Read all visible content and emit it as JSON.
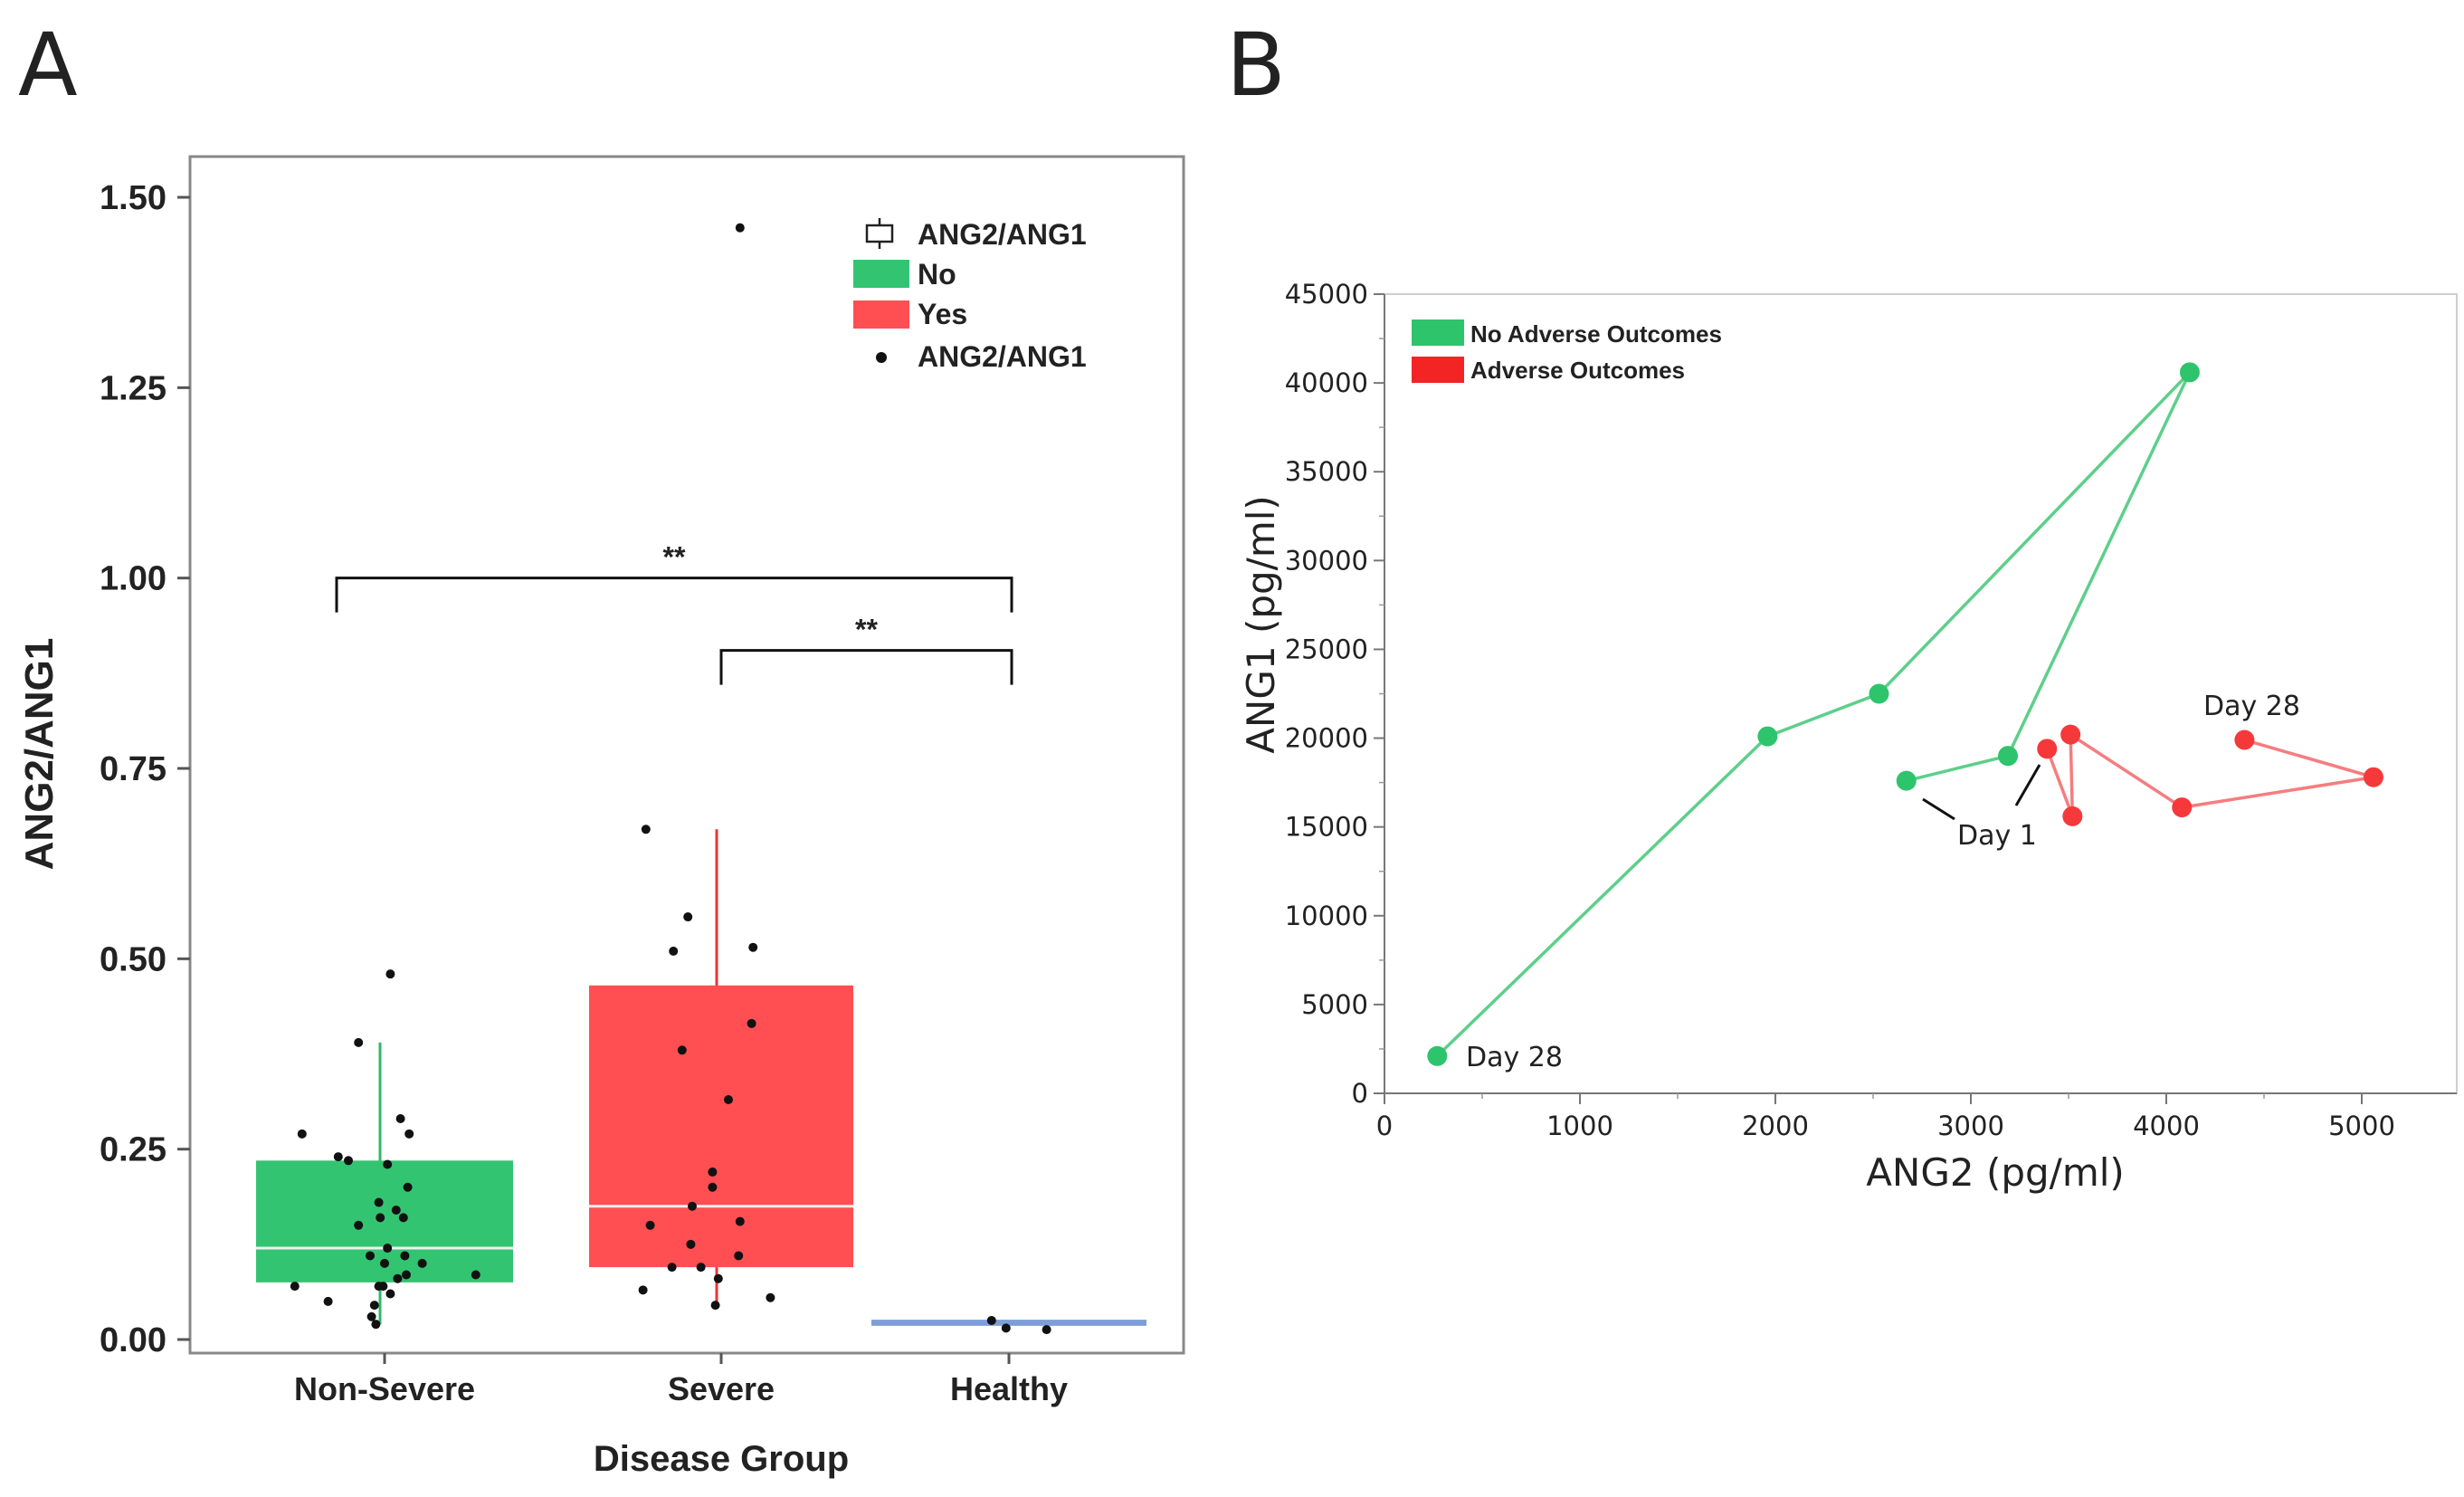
{
  "panels": {
    "a": "A",
    "b": "B"
  },
  "chart_data": [
    {
      "type": "box",
      "panel": "A",
      "title": "",
      "xlabel": "Disease Group",
      "ylabel": "ANG2/ANG1",
      "ylim": [
        0,
        1.5
      ],
      "yticks": [
        0,
        0.25,
        0.5,
        0.75,
        1.0,
        1.25,
        1.5
      ],
      "ytick_labels": [
        "0.00",
        "0.25",
        "0.50",
        "0.75",
        "1.00",
        "1.25",
        "1.50"
      ],
      "categories": [
        "Non-Severe",
        "Severe",
        "Healthy"
      ],
      "legend": {
        "position": "top-right",
        "entries": [
          "ANG2/ANG1",
          "No",
          "Yes",
          "ANG2/ANG1"
        ]
      },
      "colors": {
        "No": "#33c472",
        "Yes": "#ff4f52",
        "Healthy": "#7d9ed8",
        "whisker_no": "#2fb868",
        "whisker_yes": "#ee3333",
        "median": "#f0f0f0"
      },
      "boxes": [
        {
          "category": "Non-Severe",
          "group": "No",
          "q1": 0.075,
          "median": 0.12,
          "q3": 0.235,
          "whisker_low": 0.02,
          "whisker_high": 0.39
        },
        {
          "category": "Severe",
          "group": "Yes",
          "q1": 0.095,
          "median": 0.175,
          "q3": 0.465,
          "whisker_low": 0.04,
          "whisker_high": 0.67
        },
        {
          "category": "Healthy",
          "group": "",
          "q1": 0.018,
          "median": 0.02,
          "q3": 0.026,
          "whisker_low": 0.018,
          "whisker_high": 0.026
        }
      ],
      "points": [
        {
          "category": "Non-Severe",
          "values": [
            0.27,
            0.24,
            0.235,
            0.23,
            0.2,
            0.18,
            0.17,
            0.16,
            0.16,
            0.15,
            0.12,
            0.11,
            0.1,
            0.1,
            0.085,
            0.08,
            0.07,
            0.07,
            0.07,
            0.06,
            0.05,
            0.045,
            0.03,
            0.02,
            0.39,
            0.48,
            0.29,
            0.27,
            0.11,
            0.085
          ],
          "offsets": [
            -0.57,
            -0.32,
            -0.25,
            0.02,
            0.16,
            -0.04,
            0.08,
            0.13,
            -0.03,
            -0.18,
            0.02,
            0.14,
            0.26,
            0.0,
            0.15,
            0.09,
            -0.62,
            -0.04,
            -0.01,
            0.04,
            -0.39,
            -0.07,
            -0.09,
            -0.06,
            -0.18,
            0.04,
            0.11,
            0.17,
            -0.1,
            0.63
          ]
        },
        {
          "category": "Severe",
          "values": [
            0.67,
            0.555,
            0.51,
            0.515,
            0.415,
            0.38,
            0.315,
            0.22,
            0.2,
            0.175,
            0.155,
            0.15,
            0.125,
            0.11,
            0.095,
            0.095,
            0.08,
            0.065,
            0.055,
            0.045
          ],
          "offsets": [
            -0.52,
            -0.23,
            -0.33,
            0.22,
            0.21,
            -0.27,
            0.05,
            -0.06,
            -0.06,
            -0.2,
            0.13,
            -0.49,
            -0.21,
            0.12,
            -0.34,
            -0.14,
            -0.02,
            -0.54,
            0.34,
            -0.04
          ]
        },
        {
          "category": "Severe",
          "values": [
            1.46
          ],
          "offsets": [
            0.13
          ]
        },
        {
          "category": "Healthy",
          "values": [
            0.025,
            0.015,
            0.013
          ],
          "offsets": [
            -0.12,
            -0.02,
            0.26
          ]
        }
      ],
      "annotations": [
        {
          "from": "Non-Severe",
          "to": "Healthy",
          "y": 1.0,
          "label": "**"
        },
        {
          "from": "Severe",
          "to": "Healthy",
          "y": 0.905,
          "label": "**"
        }
      ]
    },
    {
      "type": "line",
      "panel": "B",
      "title": "",
      "xlabel": "ANG2 (pg/ml)",
      "ylabel": "ANG1 (pg/ml)",
      "xlim": [
        0,
        5500
      ],
      "ylim": [
        0,
        45000
      ],
      "xticks": [
        0,
        1000,
        2000,
        3000,
        4000,
        5000
      ],
      "xtick_labels": [
        "0",
        "1000",
        "2000",
        "3000",
        "4000",
        "5000"
      ],
      "yticks": [
        0,
        5000,
        10000,
        15000,
        20000,
        25000,
        30000,
        35000,
        40000,
        45000
      ],
      "ytick_labels": [
        "0",
        "5000",
        "10000",
        "15000",
        "20000",
        "25000",
        "30000",
        "35000",
        "40000",
        "45000"
      ],
      "legend": {
        "position": "top-left",
        "entries": [
          "No Adverse Outcomes",
          "Adverse Outcomes"
        ]
      },
      "series": [
        {
          "name": "No Adverse Outcomes",
          "color": "#2ec46c",
          "line_color": "#5dcf8a",
          "x": [
            2670,
            3190,
            4120,
            2530,
            1960,
            270
          ],
          "y": [
            17600,
            19000,
            40600,
            22500,
            20100,
            2100
          ]
        },
        {
          "name": "Adverse Outcomes",
          "color": "#f5393b",
          "line_color": "#f57d7f",
          "x": [
            3390,
            3520,
            3510,
            4080,
            5060,
            4400
          ],
          "y": [
            19400,
            15600,
            20200,
            16100,
            17800,
            19900
          ]
        }
      ],
      "annotations": [
        "Day 1",
        "Day 28",
        "Day 28"
      ]
    }
  ]
}
